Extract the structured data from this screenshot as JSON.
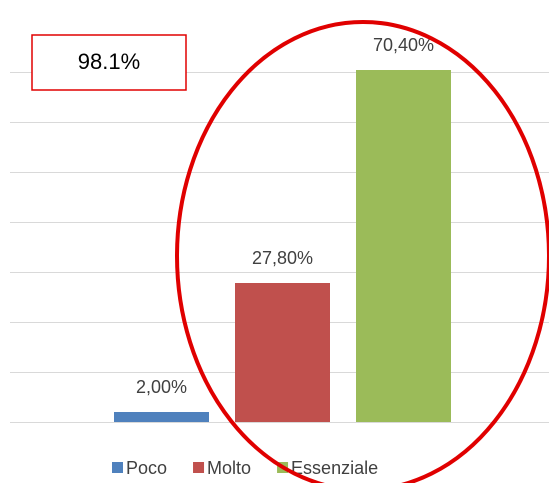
{
  "chart_data": {
    "type": "bar",
    "categories": [
      null
    ],
    "series": [
      {
        "name": "Poco",
        "color": "#4f81bd",
        "values": [
          2.0
        ],
        "value_labels": [
          "2,00%"
        ]
      },
      {
        "name": "Molto",
        "color": "#c0504d",
        "values": [
          27.8
        ],
        "value_labels": [
          "27,80%"
        ]
      },
      {
        "name": "Essenziale",
        "color": "#9bbb59",
        "values": [
          70.4
        ],
        "value_labels": [
          "70,40%"
        ]
      }
    ],
    "ylim": [
      0,
      80
    ],
    "yticks": [
      0,
      10,
      20,
      30,
      40,
      50,
      60,
      70
    ],
    "grid": true,
    "legend": "bottom",
    "annotations": [
      "98.1%"
    ]
  }
}
